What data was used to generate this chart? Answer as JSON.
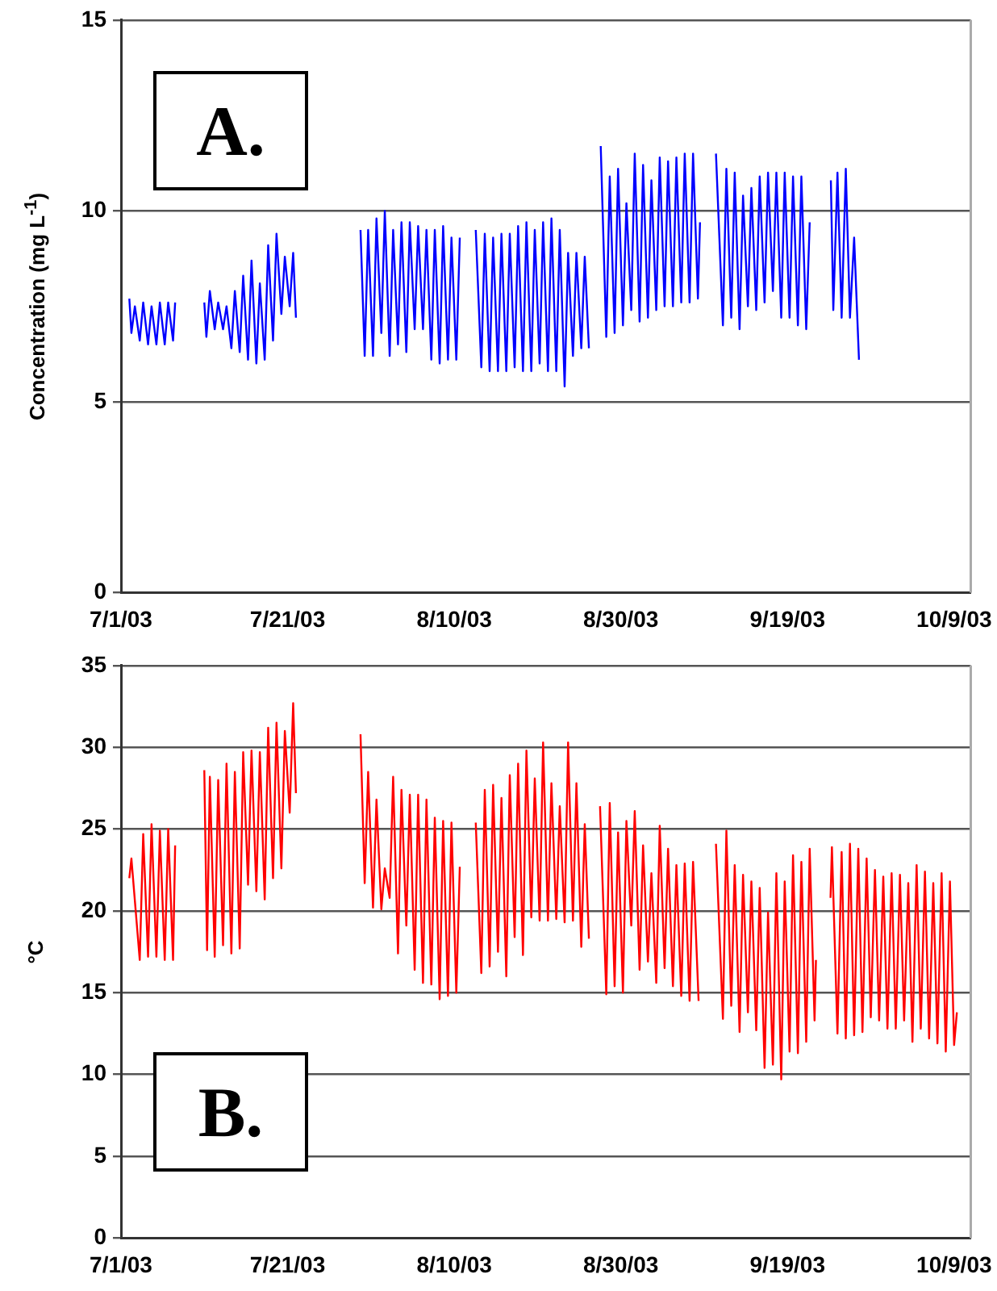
{
  "chart_data": [
    {
      "type": "line",
      "ylabel": "Concentration (mg L$^{-1}$)",
      "annotations": [
        "A."
      ],
      "grid": "y",
      "legend": false,
      "line_style": "solid",
      "xlim": [
        "2003-07-01",
        "2003-10-11"
      ],
      "xticks": [
        {
          "value": "2003-07-01",
          "label": "7/1/03"
        },
        {
          "value": "2003-07-21",
          "label": "7/21/03"
        },
        {
          "value": "2003-08-10",
          "label": "8/10/03"
        },
        {
          "value": "2003-08-30",
          "label": "8/30/03"
        },
        {
          "value": "2003-09-19",
          "label": "9/19/03"
        },
        {
          "value": "2003-10-09",
          "label": "10/9/03"
        }
      ],
      "ylim": [
        0,
        15
      ],
      "yticks": [
        0,
        5,
        10,
        15
      ],
      "series": [
        {
          "color": "#0000ff",
          "x": [
            "2003-07-02T00:00",
            "2003-07-02T06:00",
            "2003-07-02T16:00",
            "2003-07-03T06:00",
            "2003-07-03T16:00",
            "2003-07-04T06:00",
            "2003-07-04T16:00",
            "2003-07-05T06:00",
            "2003-07-05T16:00",
            "2003-07-06T06:00",
            "2003-07-06T16:00",
            "2003-07-07T06:00",
            "2003-07-07T12:00",
            "2003-07-09T00:00",
            "2003-07-11T00:00",
            "2003-07-11T06:00",
            "2003-07-11T16:00",
            "2003-07-12T06:00",
            "2003-07-12T16:00",
            "2003-07-13T06:00",
            "2003-07-13T16:00",
            "2003-07-14T06:00",
            "2003-07-14T16:00",
            "2003-07-15T06:00",
            "2003-07-15T16:00",
            "2003-07-16T06:00",
            "2003-07-16T16:00",
            "2003-07-17T06:00",
            "2003-07-17T16:00",
            "2003-07-18T06:00",
            "2003-07-18T16:00",
            "2003-07-19T06:00",
            "2003-07-19T16:00",
            "2003-07-20T06:00",
            "2003-07-20T16:00",
            "2003-07-21T06:00",
            "2003-07-21T16:00",
            "2003-07-22T00:00",
            "2003-07-25T00:00",
            "2003-07-29T18:00",
            "2003-07-30T06:00",
            "2003-07-30T16:00",
            "2003-07-31T06:00",
            "2003-07-31T16:00",
            "2003-08-01T06:00",
            "2003-08-01T16:00",
            "2003-08-02T06:00",
            "2003-08-02T16:00",
            "2003-08-03T06:00",
            "2003-08-03T16:00",
            "2003-08-04T06:00",
            "2003-08-04T16:00",
            "2003-08-05T06:00",
            "2003-08-05T16:00",
            "2003-08-06T06:00",
            "2003-08-06T16:00",
            "2003-08-07T06:00",
            "2003-08-07T16:00",
            "2003-08-08T06:00",
            "2003-08-08T16:00",
            "2003-08-09T06:00",
            "2003-08-09T16:00",
            "2003-08-10T06:00",
            "2003-08-10T16:00",
            "2003-08-11T18:00",
            "2003-08-12T14:00",
            "2003-08-13T06:00",
            "2003-08-13T16:00",
            "2003-08-14T06:00",
            "2003-08-14T16:00",
            "2003-08-15T06:00",
            "2003-08-15T16:00",
            "2003-08-16T06:00",
            "2003-08-16T16:00",
            "2003-08-17T06:00",
            "2003-08-17T16:00",
            "2003-08-18T06:00",
            "2003-08-18T16:00",
            "2003-08-19T06:00",
            "2003-08-19T16:00",
            "2003-08-20T06:00",
            "2003-08-20T16:00",
            "2003-08-21T06:00",
            "2003-08-21T16:00",
            "2003-08-22T06:00",
            "2003-08-22T16:00",
            "2003-08-23T06:00",
            "2003-08-23T16:00",
            "2003-08-24T06:00",
            "2003-08-24T16:00",
            "2003-08-25T06:00",
            "2003-08-25T16:00",
            "2003-08-26T04:00",
            "2003-08-27T00:00",
            "2003-08-27T14:00",
            "2003-08-28T06:00",
            "2003-08-28T16:00",
            "2003-08-29T06:00",
            "2003-08-29T16:00",
            "2003-08-30T06:00",
            "2003-08-30T16:00",
            "2003-08-31T06:00",
            "2003-08-31T16:00",
            "2003-09-01T06:00",
            "2003-09-01T16:00",
            "2003-09-02T06:00",
            "2003-09-02T16:00",
            "2003-09-03T06:00",
            "2003-09-03T16:00",
            "2003-09-04T06:00",
            "2003-09-04T16:00",
            "2003-09-05T06:00",
            "2003-09-05T16:00",
            "2003-09-06T06:00",
            "2003-09-06T16:00",
            "2003-09-07T06:00",
            "2003-09-07T16:00",
            "2003-09-08T06:00",
            "2003-09-08T12:00",
            "2003-09-09T00:00",
            "2003-09-10T10:00",
            "2003-09-11T06:00",
            "2003-09-11T16:00",
            "2003-09-12T06:00",
            "2003-09-12T16:00",
            "2003-09-13T06:00",
            "2003-09-13T16:00",
            "2003-09-14T06:00",
            "2003-09-14T16:00",
            "2003-09-15T06:00",
            "2003-09-15T16:00",
            "2003-09-16T06:00",
            "2003-09-16T16:00",
            "2003-09-17T06:00",
            "2003-09-17T16:00",
            "2003-09-18T06:00",
            "2003-09-18T16:00",
            "2003-09-19T06:00",
            "2003-09-19T16:00",
            "2003-09-20T06:00",
            "2003-09-20T16:00",
            "2003-09-21T06:00",
            "2003-09-21T16:00",
            "2003-09-23T00:00",
            "2003-09-24T05:00",
            "2003-09-24T12:00",
            "2003-09-25T00:00",
            "2003-09-25T12:00",
            "2003-09-26T00:00",
            "2003-09-26T12:00",
            "2003-09-27T00:00",
            "2003-09-27T14:00"
          ],
          "values": [
            7.7,
            6.8,
            7.5,
            6.6,
            7.6,
            6.5,
            7.5,
            6.5,
            7.6,
            6.5,
            7.6,
            6.6,
            7.6,
            null,
            7.6,
            6.7,
            7.9,
            6.9,
            7.6,
            6.9,
            7.5,
            6.4,
            7.9,
            6.3,
            8.3,
            6.1,
            8.7,
            6.0,
            8.1,
            6.1,
            9.1,
            6.6,
            9.4,
            7.3,
            8.8,
            7.5,
            8.9,
            7.2,
            null,
            9.5,
            6.2,
            9.5,
            6.2,
            9.8,
            6.8,
            10.0,
            6.2,
            9.5,
            6.5,
            9.7,
            6.3,
            9.7,
            6.9,
            9.6,
            6.9,
            9.5,
            6.1,
            9.5,
            6.0,
            9.6,
            6.1,
            9.3,
            6.1,
            9.3,
            null,
            9.5,
            5.9,
            9.4,
            5.8,
            9.3,
            5.8,
            9.4,
            5.8,
            9.4,
            5.9,
            9.6,
            5.8,
            9.7,
            5.8,
            9.5,
            6.0,
            9.7,
            5.8,
            9.8,
            5.8,
            9.5,
            5.4,
            8.9,
            6.2,
            8.9,
            6.4,
            8.8,
            6.4,
            null,
            11.7,
            6.7,
            10.9,
            6.8,
            11.1,
            7.0,
            10.2,
            7.4,
            11.5,
            7.1,
            11.2,
            7.2,
            10.8,
            7.4,
            11.4,
            7.5,
            11.3,
            7.5,
            11.4,
            7.6,
            11.5,
            7.6,
            11.5,
            7.7,
            9.7,
            null,
            11.5,
            7.0,
            11.1,
            7.2,
            11.0,
            6.9,
            10.4,
            7.5,
            10.6,
            7.4,
            10.9,
            7.6,
            11.0,
            7.9,
            11.0,
            7.2,
            11.0,
            7.2,
            10.9,
            7.0,
            10.9,
            6.9,
            9.7,
            null,
            10.8,
            7.4,
            11.0,
            7.2,
            11.1,
            7.2,
            9.3,
            6.1
          ]
        }
      ]
    },
    {
      "type": "line",
      "ylabel": "°C",
      "annotations": [
        "B."
      ],
      "grid": "y",
      "legend": false,
      "line_style": "solid",
      "xlim": [
        "2003-07-01",
        "2003-10-11"
      ],
      "xticks": [
        {
          "value": "2003-07-01",
          "label": "7/1/03"
        },
        {
          "value": "2003-07-21",
          "label": "7/21/03"
        },
        {
          "value": "2003-08-10",
          "label": "8/10/03"
        },
        {
          "value": "2003-08-30",
          "label": "8/30/03"
        },
        {
          "value": "2003-09-19",
          "label": "9/19/03"
        },
        {
          "value": "2003-10-09",
          "label": "10/9/03"
        }
      ],
      "ylim": [
        0,
        35
      ],
      "yticks": [
        0,
        5,
        10,
        15,
        20,
        25,
        30,
        35
      ],
      "series": [
        {
          "color": "#ff0000",
          "x": [
            "2003-07-02T00:00",
            "2003-07-02T06:00",
            "2003-07-03T06:00",
            "2003-07-03T16:00",
            "2003-07-04T06:00",
            "2003-07-04T16:00",
            "2003-07-05T06:00",
            "2003-07-05T16:00",
            "2003-07-06T06:00",
            "2003-07-06T16:00",
            "2003-07-07T06:00",
            "2003-07-07T12:00",
            "2003-07-09T00:00",
            "2003-07-11T00:00",
            "2003-07-11T08:00",
            "2003-07-11T16:00",
            "2003-07-12T06:00",
            "2003-07-12T16:00",
            "2003-07-13T06:00",
            "2003-07-13T16:00",
            "2003-07-14T06:00",
            "2003-07-14T16:00",
            "2003-07-15T06:00",
            "2003-07-15T16:00",
            "2003-07-16T06:00",
            "2003-07-16T16:00",
            "2003-07-17T06:00",
            "2003-07-17T16:00",
            "2003-07-18T06:00",
            "2003-07-18T16:00",
            "2003-07-19T06:00",
            "2003-07-19T16:00",
            "2003-07-20T06:00",
            "2003-07-20T16:00",
            "2003-07-21T06:00",
            "2003-07-21T16:00",
            "2003-07-22T00:00",
            "2003-07-25T00:00",
            "2003-07-29T18:00",
            "2003-07-30T06:00",
            "2003-07-30T16:00",
            "2003-07-31T06:00",
            "2003-07-31T16:00",
            "2003-08-01T06:00",
            "2003-08-01T16:00",
            "2003-08-02T06:00",
            "2003-08-02T16:00",
            "2003-08-03T06:00",
            "2003-08-03T16:00",
            "2003-08-04T06:00",
            "2003-08-04T16:00",
            "2003-08-05T06:00",
            "2003-08-05T16:00",
            "2003-08-06T06:00",
            "2003-08-06T16:00",
            "2003-08-07T06:00",
            "2003-08-07T16:00",
            "2003-08-08T06:00",
            "2003-08-08T16:00",
            "2003-08-09T06:00",
            "2003-08-09T16:00",
            "2003-08-10T06:00",
            "2003-08-10T16:00",
            "2003-08-11T18:00",
            "2003-08-12T14:00",
            "2003-08-13T06:00",
            "2003-08-13T16:00",
            "2003-08-14T06:00",
            "2003-08-14T16:00",
            "2003-08-15T06:00",
            "2003-08-15T16:00",
            "2003-08-16T06:00",
            "2003-08-16T16:00",
            "2003-08-17T06:00",
            "2003-08-17T16:00",
            "2003-08-18T06:00",
            "2003-08-18T16:00",
            "2003-08-19T06:00",
            "2003-08-19T16:00",
            "2003-08-20T06:00",
            "2003-08-20T16:00",
            "2003-08-21T06:00",
            "2003-08-21T16:00",
            "2003-08-22T06:00",
            "2003-08-22T16:00",
            "2003-08-23T06:00",
            "2003-08-23T16:00",
            "2003-08-24T06:00",
            "2003-08-24T16:00",
            "2003-08-25T06:00",
            "2003-08-25T16:00",
            "2003-08-26T04:00",
            "2003-08-27T00:00",
            "2003-08-27T12:00",
            "2003-08-28T06:00",
            "2003-08-28T16:00",
            "2003-08-29T06:00",
            "2003-08-29T16:00",
            "2003-08-30T06:00",
            "2003-08-30T16:00",
            "2003-08-31T06:00",
            "2003-08-31T16:00",
            "2003-09-01T06:00",
            "2003-09-01T16:00",
            "2003-09-02T06:00",
            "2003-09-02T16:00",
            "2003-09-03T06:00",
            "2003-09-03T16:00",
            "2003-09-04T06:00",
            "2003-09-04T16:00",
            "2003-09-05T06:00",
            "2003-09-05T16:00",
            "2003-09-06T06:00",
            "2003-09-06T16:00",
            "2003-09-07T06:00",
            "2003-09-07T16:00",
            "2003-09-08T08:00",
            "2003-09-09T00:00",
            "2003-09-10T10:00",
            "2003-09-11T06:00",
            "2003-09-11T16:00",
            "2003-09-12T06:00",
            "2003-09-12T16:00",
            "2003-09-13T06:00",
            "2003-09-13T16:00",
            "2003-09-14T06:00",
            "2003-09-14T16:00",
            "2003-09-15T06:00",
            "2003-09-15T16:00",
            "2003-09-16T06:00",
            "2003-09-16T16:00",
            "2003-09-17T06:00",
            "2003-09-17T16:00",
            "2003-09-18T06:00",
            "2003-09-18T16:00",
            "2003-09-19T06:00",
            "2003-09-19T16:00",
            "2003-09-20T06:00",
            "2003-09-20T16:00",
            "2003-09-21T06:00",
            "2003-09-21T16:00",
            "2003-09-22T06:00",
            "2003-09-22T10:00",
            "2003-09-23T00:00",
            "2003-09-24T04:00",
            "2003-09-24T08:00",
            "2003-09-25T00:00",
            "2003-09-25T12:00",
            "2003-09-26T00:00",
            "2003-09-26T12:00",
            "2003-09-27T00:00",
            "2003-09-27T12:00",
            "2003-09-28T00:00",
            "2003-09-28T12:00",
            "2003-09-29T00:00",
            "2003-09-29T12:00",
            "2003-09-30T00:00",
            "2003-09-30T12:00",
            "2003-10-01T00:00",
            "2003-10-01T12:00",
            "2003-10-02T00:00",
            "2003-10-02T12:00",
            "2003-10-03T00:00",
            "2003-10-03T12:00",
            "2003-10-04T00:00",
            "2003-10-04T12:00",
            "2003-10-05T00:00",
            "2003-10-05T12:00",
            "2003-10-06T00:00",
            "2003-10-06T12:00",
            "2003-10-07T00:00",
            "2003-10-07T12:00",
            "2003-10-08T00:00",
            "2003-10-08T12:00",
            "2003-10-09T00:00",
            "2003-10-09T08:00"
          ],
          "values": [
            22.0,
            23.2,
            17.0,
            24.7,
            17.2,
            25.3,
            17.2,
            24.9,
            17.0,
            25.0,
            17.0,
            24.0,
            null,
            28.6,
            17.6,
            28.2,
            17.2,
            28.0,
            17.9,
            29.0,
            17.4,
            28.5,
            17.7,
            29.7,
            21.6,
            29.8,
            21.2,
            29.7,
            20.7,
            31.2,
            22.0,
            31.5,
            22.6,
            31.0,
            26.0,
            32.7,
            27.2,
            null,
            30.8,
            21.7,
            28.5,
            20.2,
            26.8,
            20.1,
            22.6,
            20.8,
            28.2,
            17.4,
            27.4,
            19.1,
            27.1,
            16.4,
            27.1,
            15.6,
            26.8,
            15.5,
            25.7,
            14.6,
            25.5,
            14.8,
            25.4,
            15.0,
            22.7,
            null,
            25.4,
            16.2,
            27.4,
            16.6,
            27.7,
            17.5,
            26.9,
            16.0,
            28.3,
            18.4,
            29.0,
            17.3,
            29.8,
            19.6,
            28.1,
            19.4,
            30.3,
            19.4,
            27.8,
            19.5,
            26.4,
            19.3,
            30.3,
            19.4,
            27.8,
            17.8,
            25.3,
            18.3,
            null,
            26.4,
            14.9,
            26.6,
            15.4,
            24.8,
            15.0,
            25.5,
            19.1,
            26.1,
            16.4,
            24.0,
            16.9,
            22.3,
            15.6,
            25.2,
            16.5,
            23.8,
            15.4,
            22.8,
            14.8,
            22.9,
            14.5,
            23.0,
            14.5,
            null,
            24.1,
            13.4,
            24.9,
            14.2,
            22.8,
            12.6,
            22.2,
            13.8,
            21.8,
            12.7,
            21.4,
            10.4,
            19.9,
            10.6,
            22.3,
            9.7,
            21.8,
            11.4,
            23.4,
            11.3,
            23.0,
            12.0,
            23.8,
            13.3,
            17.0,
            null,
            20.8,
            23.9,
            12.5,
            23.6,
            12.2,
            24.1,
            12.4,
            23.8,
            12.6,
            23.2,
            13.5,
            22.5,
            13.3,
            22.1,
            12.8,
            22.3,
            12.8,
            22.2,
            13.3,
            21.7,
            12.0,
            22.8,
            12.8,
            22.4,
            12.2,
            21.7,
            11.9,
            22.3,
            11.4,
            21.8,
            11.8,
            13.8
          ]
        }
      ]
    }
  ]
}
